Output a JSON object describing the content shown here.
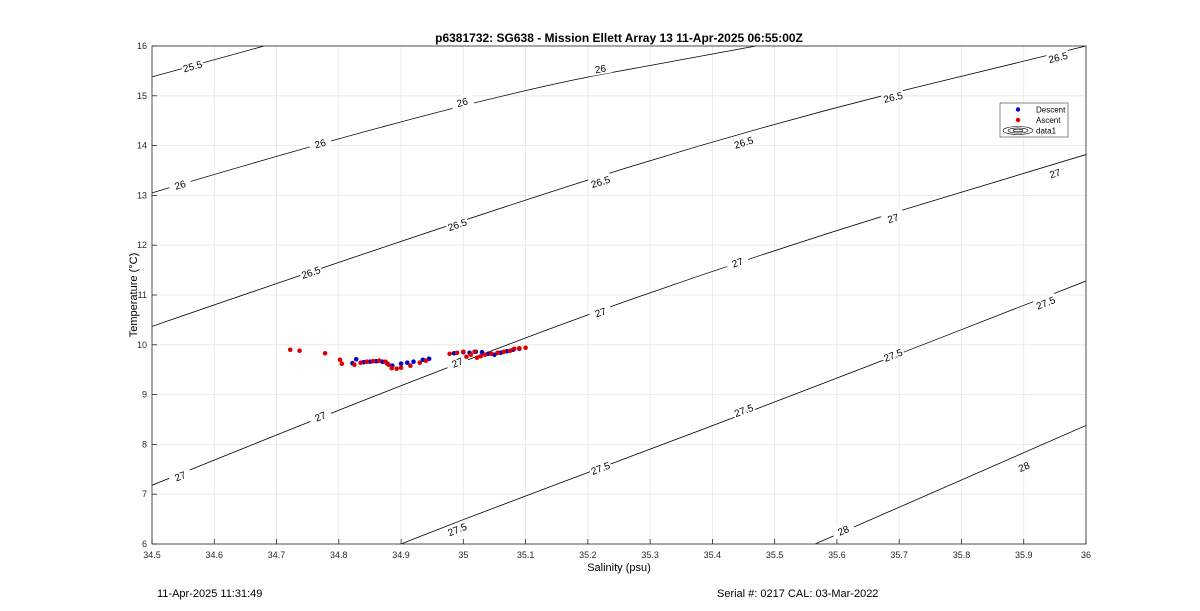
{
  "chart_data": {
    "type": "scatter",
    "title": "p6381732: SG638 - Mission Ellett Array 13 11-Apr-2025 06:55:00Z",
    "xlabel": "Salinity (psu)",
    "ylabel": "Temperature (°C)",
    "xlim": [
      34.5,
      36
    ],
    "ylim": [
      6,
      16
    ],
    "xticks": [
      "34.5",
      "34.6",
      "34.7",
      "34.8",
      "34.9",
      "35",
      "35.1",
      "35.2",
      "35.3",
      "35.4",
      "35.5",
      "35.6",
      "35.7",
      "35.8",
      "35.9",
      "36"
    ],
    "yticks": [
      "6",
      "7",
      "8",
      "9",
      "10",
      "11",
      "12",
      "13",
      "14",
      "15",
      "16"
    ],
    "grid": true,
    "legend_placement": "top-right",
    "legend": [
      "Descent",
      "Ascent",
      "data1"
    ],
    "series": [
      {
        "name": "Descent",
        "color": "#0000cc",
        "marker": "dot",
        "points": [
          [
            34.822,
            9.63
          ],
          [
            34.828,
            9.71
          ],
          [
            34.84,
            9.65
          ],
          [
            34.85,
            9.66
          ],
          [
            34.86,
            9.67
          ],
          [
            34.87,
            9.66
          ],
          [
            34.878,
            9.62
          ],
          [
            34.886,
            9.58
          ],
          [
            34.9,
            9.62
          ],
          [
            34.91,
            9.64
          ],
          [
            34.92,
            9.66
          ],
          [
            34.935,
            9.7
          ],
          [
            34.945,
            9.72
          ],
          [
            34.985,
            9.83
          ],
          [
            35.0,
            9.85
          ],
          [
            35.01,
            9.84
          ],
          [
            35.02,
            9.86
          ],
          [
            35.03,
            9.85
          ],
          [
            35.04,
            9.82
          ],
          [
            35.05,
            9.8
          ],
          [
            35.06,
            9.84
          ],
          [
            35.07,
            9.87
          ],
          [
            35.08,
            9.9
          ],
          [
            35.09,
            9.92
          ]
        ]
      },
      {
        "name": "Ascent",
        "color": "#dd0000",
        "marker": "dot",
        "points": [
          [
            34.722,
            9.9
          ],
          [
            34.737,
            9.88
          ],
          [
            34.778,
            9.83
          ],
          [
            34.802,
            9.7
          ],
          [
            34.805,
            9.62
          ],
          [
            34.825,
            9.6
          ],
          [
            34.835,
            9.64
          ],
          [
            34.845,
            9.66
          ],
          [
            34.855,
            9.67
          ],
          [
            34.865,
            9.68
          ],
          [
            34.875,
            9.66
          ],
          [
            34.88,
            9.6
          ],
          [
            34.885,
            9.53
          ],
          [
            34.893,
            9.52
          ],
          [
            34.9,
            9.54
          ],
          [
            34.915,
            9.58
          ],
          [
            34.93,
            9.64
          ],
          [
            34.94,
            9.68
          ],
          [
            34.978,
            9.82
          ],
          [
            34.99,
            9.84
          ],
          [
            35.0,
            9.86
          ],
          [
            35.005,
            9.76
          ],
          [
            35.012,
            9.8
          ],
          [
            35.018,
            9.86
          ],
          [
            35.022,
            9.74
          ],
          [
            35.028,
            9.77
          ],
          [
            35.035,
            9.8
          ],
          [
            35.045,
            9.82
          ],
          [
            35.055,
            9.84
          ],
          [
            35.065,
            9.86
          ],
          [
            35.075,
            9.88
          ],
          [
            35.082,
            9.92
          ],
          [
            35.09,
            9.93
          ],
          [
            35.1,
            9.94
          ]
        ]
      }
    ],
    "contours": [
      {
        "label": "25.5",
        "points": [
          [
            34.5,
            15.38
          ],
          [
            34.68,
            16.0
          ]
        ],
        "labels_at": [
          [
            34.565,
            15.6
          ]
        ]
      },
      {
        "label": "26",
        "points": [
          [
            34.5,
            13.05
          ],
          [
            35.0,
            14.92
          ],
          [
            35.47,
            16.0
          ]
        ],
        "labels_at": [
          [
            34.545,
            13.22
          ],
          [
            34.77,
            14.05
          ],
          [
            34.998,
            14.88
          ],
          [
            35.22,
            15.55
          ]
        ]
      },
      {
        "label": "26.5",
        "points": [
          [
            34.5,
            10.37
          ],
          [
            35.0,
            12.53
          ],
          [
            35.5,
            14.48
          ],
          [
            36.0,
            16.0
          ]
        ],
        "labels_at": [
          [
            34.755,
            11.46
          ],
          [
            34.99,
            12.42
          ],
          [
            35.22,
            13.28
          ],
          [
            35.45,
            14.07
          ],
          [
            35.69,
            14.98
          ],
          [
            35.955,
            15.78
          ]
        ]
      },
      {
        "label": "27",
        "points": [
          [
            34.5,
            7.18
          ],
          [
            35.0,
            9.72
          ],
          [
            35.5,
            11.93
          ],
          [
            36.0,
            13.82
          ]
        ],
        "labels_at": [
          [
            34.545,
            7.37
          ],
          [
            34.77,
            8.57
          ],
          [
            34.99,
            9.65
          ],
          [
            35.22,
            10.66
          ],
          [
            35.44,
            11.66
          ],
          [
            35.69,
            12.55
          ],
          [
            35.95,
            13.45
          ]
        ]
      },
      {
        "label": "27.5",
        "points": [
          [
            34.9,
            6.0
          ],
          [
            35.0,
            6.5
          ],
          [
            35.5,
            8.84
          ],
          [
            36.0,
            11.28
          ]
        ],
        "labels_at": [
          [
            34.99,
            6.3
          ],
          [
            35.22,
            7.53
          ],
          [
            35.45,
            8.69
          ],
          [
            35.69,
            9.8
          ],
          [
            35.935,
            10.85
          ]
        ]
      },
      {
        "label": "28",
        "points": [
          [
            35.565,
            6.0
          ],
          [
            36.0,
            8.38
          ]
        ],
        "labels_at": [
          [
            35.61,
            6.28
          ],
          [
            35.9,
            7.56
          ]
        ]
      }
    ]
  },
  "footer": {
    "timestamp": "11-Apr-2025 11:31:49",
    "serial": "Serial #: 0217  CAL: 03-Mar-2022"
  }
}
